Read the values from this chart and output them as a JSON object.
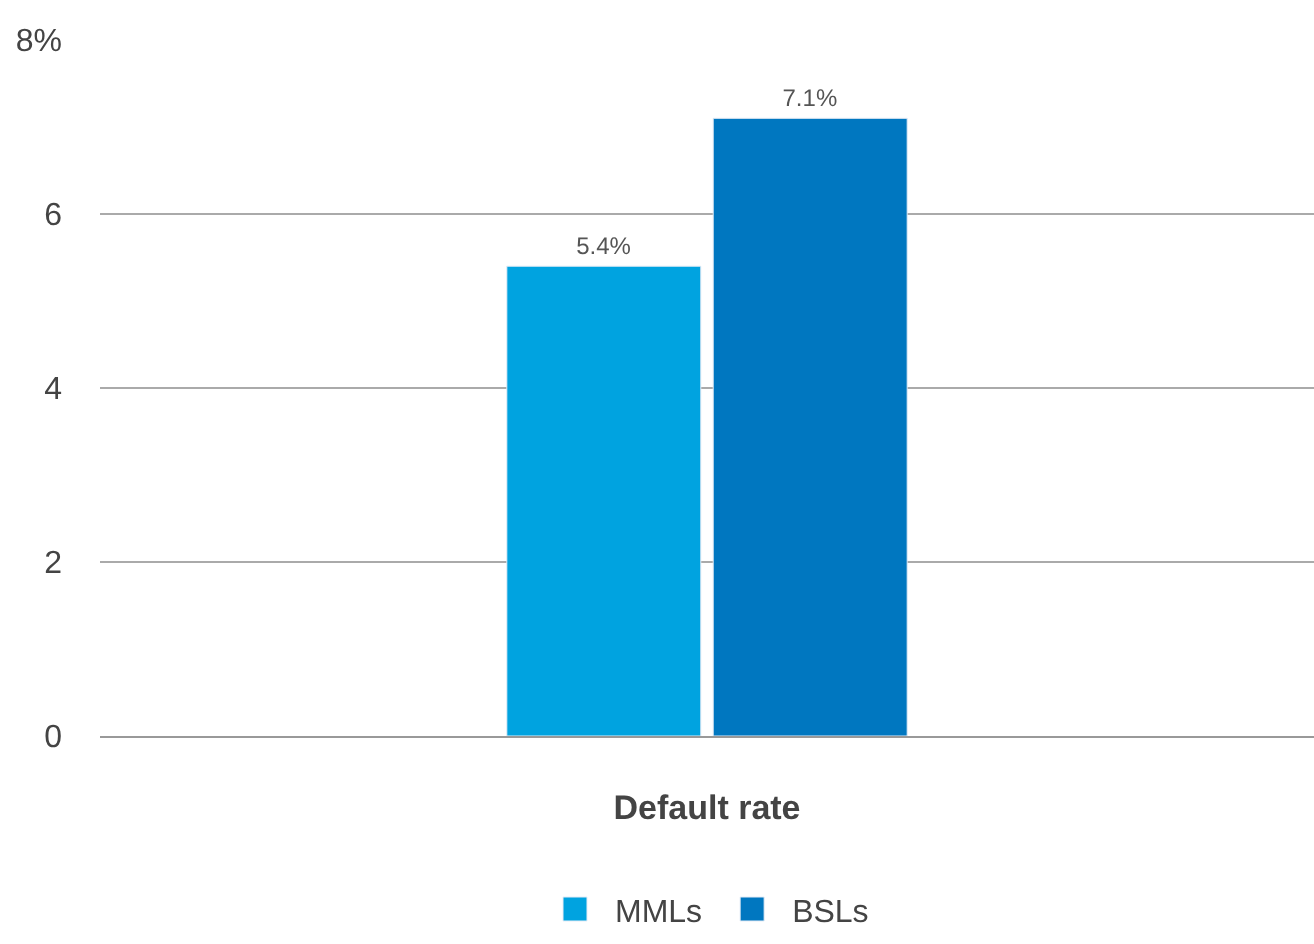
{
  "chart_data": {
    "type": "bar",
    "categories": [
      "Default rate"
    ],
    "series": [
      {
        "name": "MMLs",
        "color": "#00a3e0",
        "values": [
          5.4
        ],
        "value_labels": [
          "5.4%"
        ]
      },
      {
        "name": "BSLs",
        "color": "#0077c0",
        "values": [
          7.1
        ],
        "value_labels": [
          "7.1%"
        ]
      }
    ],
    "ylim": [
      0,
      8
    ],
    "yticks": [
      0,
      2,
      4,
      6,
      {
        "value": 8,
        "label": "8%"
      }
    ],
    "grid": "y",
    "legend": "bottom"
  }
}
